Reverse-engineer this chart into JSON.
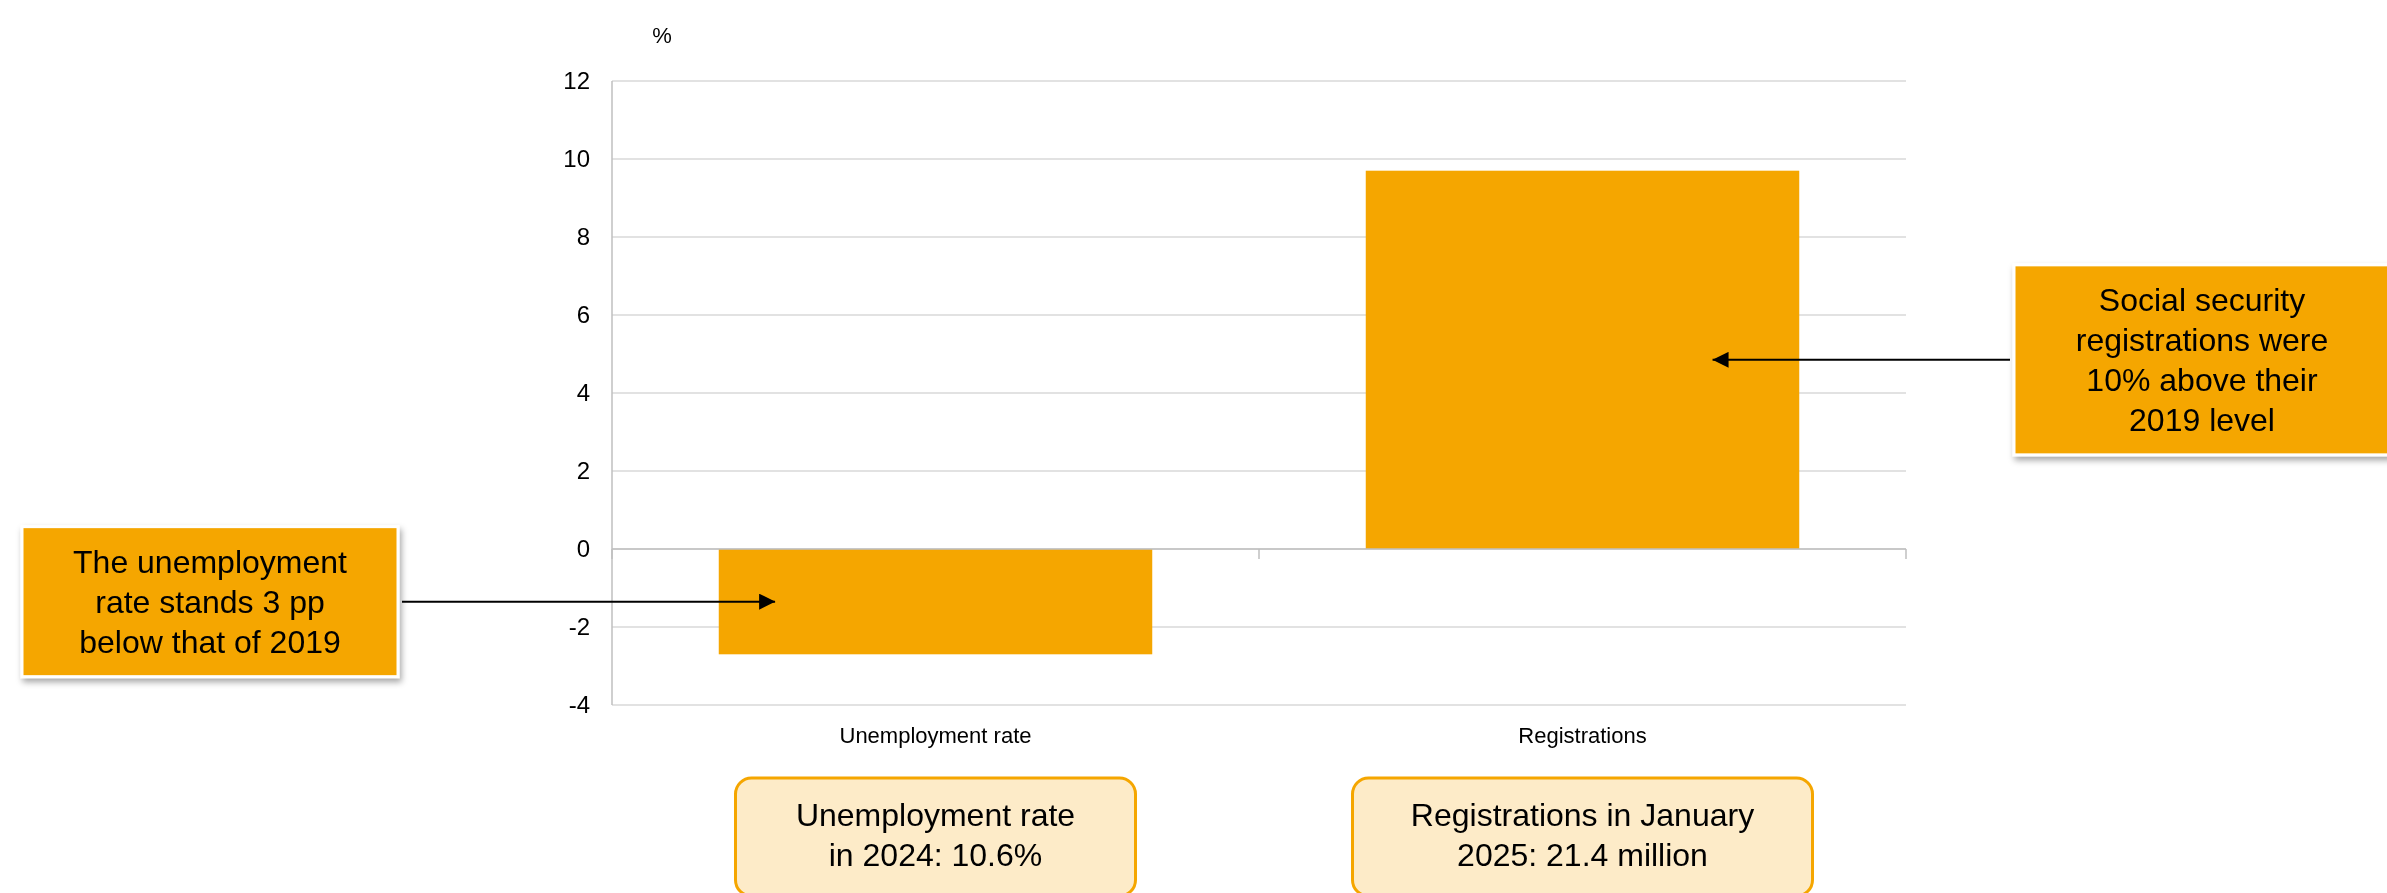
{
  "chart_data": {
    "type": "bar",
    "ylabel": "%",
    "categories": [
      "Unemployment rate",
      "Registrations"
    ],
    "values": [
      -2.7,
      9.7
    ],
    "color": "#f5a600",
    "ylim": [
      -4,
      12
    ],
    "yticks": [
      -4,
      -2,
      0,
      2,
      4,
      6,
      8,
      10,
      12
    ],
    "grid": "y",
    "annotations": [
      "The unemployment rate stands 3 pp below that of 2019",
      "Social security registrations were 10% above their 2019 level",
      "Unemployment rate in 2024: 10.6%",
      "Registrations in January 2025: 21.4 million"
    ]
  }
}
